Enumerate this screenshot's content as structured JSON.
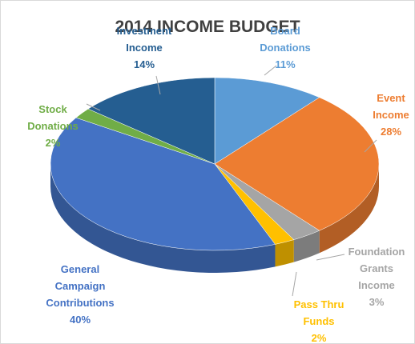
{
  "chart_data": {
    "type": "pie3d",
    "title": "2014 INCOME BUDGET",
    "categories": [
      "Board\nDonations",
      "Event\nIncome",
      "Foundation\nGrants\nIncome",
      "Pass Thru\nFunds",
      "General\nCampaign\nContributions",
      "Stock\nDonations",
      "Investment\nIncome"
    ],
    "values": [
      11,
      28,
      3,
      2,
      40,
      2,
      14
    ],
    "value_labels": [
      "11%",
      "28%",
      "3%",
      "2%",
      "40%",
      "2%",
      "14%"
    ],
    "colors": [
      "#5b9bd5",
      "#ed7d31",
      "#a5a5a5",
      "#ffc000",
      "#4472c4",
      "#70ad47",
      "#255e91"
    ]
  }
}
